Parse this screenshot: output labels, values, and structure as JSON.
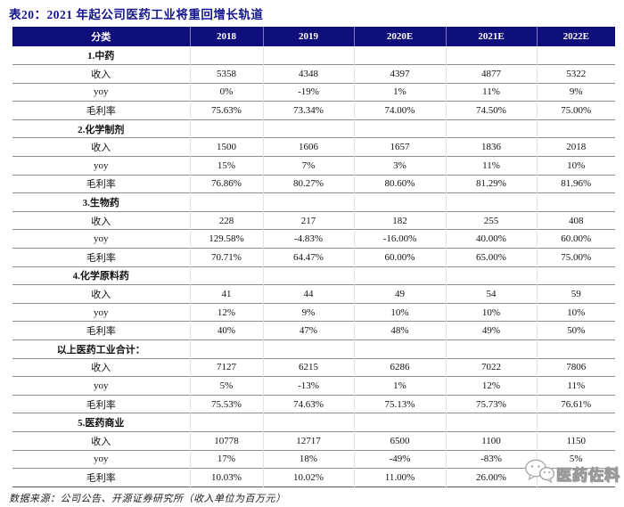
{
  "title": "表20：2021 年起公司医药工业将重回增长轨道",
  "colors": {
    "header_bg": "#0f0f7c",
    "title_color": "#14148c"
  },
  "table": {
    "header": [
      "分类",
      "2018",
      "2019",
      "2020E",
      "2021E",
      "2022E"
    ],
    "sections": [
      {
        "name": "1.中药",
        "rows": [
          [
            "收入",
            "5358",
            "4348",
            "4397",
            "4877",
            "5322"
          ],
          [
            "yoy",
            "0%",
            "-19%",
            "1%",
            "11%",
            "9%"
          ],
          [
            "毛利率",
            "75.63%",
            "73.34%",
            "74.00%",
            "74.50%",
            "75.00%"
          ]
        ]
      },
      {
        "name": "2.化学制剂",
        "rows": [
          [
            "收入",
            "1500",
            "1606",
            "1657",
            "1836",
            "2018"
          ],
          [
            "yoy",
            "15%",
            "7%",
            "3%",
            "11%",
            "10%"
          ],
          [
            "毛利率",
            "76.86%",
            "80.27%",
            "80.60%",
            "81.29%",
            "81.96%"
          ]
        ]
      },
      {
        "name": "3.生物药",
        "rows": [
          [
            "收入",
            "228",
            "217",
            "182",
            "255",
            "408"
          ],
          [
            "yoy",
            "129.58%",
            "-4.83%",
            "-16.00%",
            "40.00%",
            "60.00%"
          ],
          [
            "毛利率",
            "70.71%",
            "64.47%",
            "60.00%",
            "65.00%",
            "75.00%"
          ]
        ]
      },
      {
        "name": "4.化学原料药",
        "rows": [
          [
            "收入",
            "41",
            "44",
            "49",
            "54",
            "59"
          ],
          [
            "yoy",
            "12%",
            "9%",
            "10%",
            "10%",
            "10%"
          ],
          [
            "毛利率",
            "40%",
            "47%",
            "48%",
            "49%",
            "50%"
          ]
        ]
      },
      {
        "name": "以上医药工业合计：",
        "rows": [
          [
            "收入",
            "7127",
            "6215",
            "6286",
            "7022",
            "7806"
          ],
          [
            "yoy",
            "5%",
            "-13%",
            "1%",
            "12%",
            "11%"
          ],
          [
            "毛利率",
            "75.53%",
            "74.63%",
            "75.13%",
            "75.73%",
            "76.61%"
          ]
        ]
      },
      {
        "name": "5.医药商业",
        "rows": [
          [
            "收入",
            "10778",
            "12717",
            "6500",
            "1100",
            "1150"
          ],
          [
            "yoy",
            "17%",
            "18%",
            "-49%",
            "-83%",
            "5%"
          ],
          [
            "毛利率",
            "10.03%",
            "10.02%",
            "11.00%",
            "26.00%",
            ""
          ]
        ]
      }
    ]
  },
  "footer": {
    "source": "数据来源：公司公告、开源证券研究所（收入单位为百万元）"
  },
  "watermark": {
    "icon": "wechat-icon",
    "text": "医药佐料"
  }
}
